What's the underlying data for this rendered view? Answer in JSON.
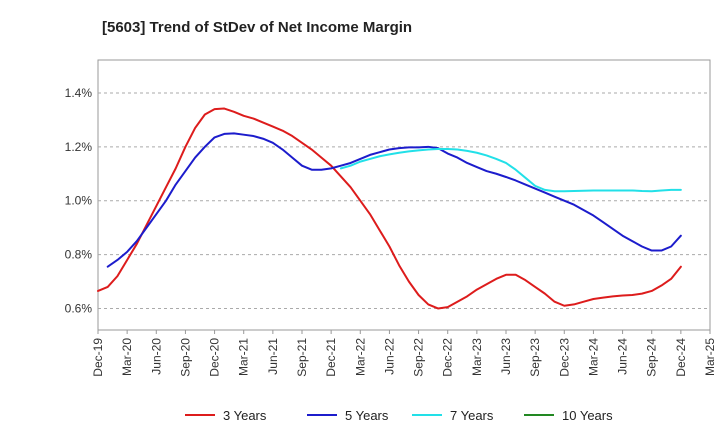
{
  "chart_data": {
    "type": "line",
    "title": "[5603]  Trend of StDev of Net Income Margin",
    "xlabel": "",
    "ylabel": "",
    "x_ticks": [
      "Dec-19",
      "Mar-20",
      "Jun-20",
      "Sep-20",
      "Dec-20",
      "Mar-21",
      "Jun-21",
      "Sep-21",
      "Dec-21",
      "Mar-22",
      "Jun-22",
      "Sep-22",
      "Dec-22",
      "Mar-23",
      "Jun-23",
      "Sep-23",
      "Dec-23",
      "Mar-24",
      "Jun-24",
      "Sep-24",
      "Dec-24",
      "Mar-25"
    ],
    "y_ticks": [
      "0.6%",
      "0.8%",
      "1.0%",
      "1.2%",
      "1.4%"
    ],
    "y_tick_values": [
      0.6,
      0.8,
      1.0,
      1.2,
      1.4
    ],
    "ylim": [
      0.52,
      1.5
    ],
    "grid": "horizontal dashed",
    "legend_position": "bottom",
    "series": [
      {
        "name": "3 Years",
        "color": "#dd1c1c",
        "points": [
          [
            "Dec-19",
            0.665
          ],
          [
            "Jan-20",
            0.68
          ],
          [
            "Feb-20",
            0.72
          ],
          [
            "Mar-20",
            0.78
          ],
          [
            "Apr-20",
            0.84
          ],
          [
            "May-20",
            0.91
          ],
          [
            "Jun-20",
            0.98
          ],
          [
            "Jul-20",
            1.05
          ],
          [
            "Aug-20",
            1.12
          ],
          [
            "Sep-20",
            1.2
          ],
          [
            "Oct-20",
            1.27
          ],
          [
            "Nov-20",
            1.32
          ],
          [
            "Dec-20",
            1.34
          ],
          [
            "Jan-21",
            1.342
          ],
          [
            "Feb-21",
            1.33
          ],
          [
            "Mar-21",
            1.315
          ],
          [
            "Apr-21",
            1.305
          ],
          [
            "May-21",
            1.29
          ],
          [
            "Jun-21",
            1.275
          ],
          [
            "Jul-21",
            1.26
          ],
          [
            "Aug-21",
            1.24
          ],
          [
            "Sep-21",
            1.215
          ],
          [
            "Oct-21",
            1.19
          ],
          [
            "Nov-21",
            1.16
          ],
          [
            "Dec-21",
            1.13
          ],
          [
            "Jan-22",
            1.09
          ],
          [
            "Feb-22",
            1.05
          ],
          [
            "Mar-22",
            1.0
          ],
          [
            "Apr-22",
            0.95
          ],
          [
            "May-22",
            0.89
          ],
          [
            "Jun-22",
            0.83
          ],
          [
            "Jul-22",
            0.76
          ],
          [
            "Aug-22",
            0.7
          ],
          [
            "Sep-22",
            0.65
          ],
          [
            "Oct-22",
            0.615
          ],
          [
            "Nov-22",
            0.6
          ],
          [
            "Dec-22",
            0.605
          ],
          [
            "Jan-23",
            0.625
          ],
          [
            "Feb-23",
            0.645
          ],
          [
            "Mar-23",
            0.67
          ],
          [
            "Apr-23",
            0.69
          ],
          [
            "May-23",
            0.71
          ],
          [
            "Jun-23",
            0.725
          ],
          [
            "Jul-23",
            0.725
          ],
          [
            "Aug-23",
            0.705
          ],
          [
            "Sep-23",
            0.68
          ],
          [
            "Oct-23",
            0.655
          ],
          [
            "Nov-23",
            0.625
          ],
          [
            "Dec-23",
            0.61
          ],
          [
            "Jan-24",
            0.615
          ],
          [
            "Feb-24",
            0.625
          ],
          [
            "Mar-24",
            0.635
          ],
          [
            "Apr-24",
            0.64
          ],
          [
            "May-24",
            0.645
          ],
          [
            "Jun-24",
            0.648
          ],
          [
            "Jul-24",
            0.65
          ],
          [
            "Aug-24",
            0.655
          ],
          [
            "Sep-24",
            0.665
          ],
          [
            "Oct-24",
            0.685
          ],
          [
            "Nov-24",
            0.71
          ],
          [
            "Dec-24",
            0.755
          ]
        ]
      },
      {
        "name": "5 Years",
        "color": "#1c1ccc",
        "points": [
          [
            "Jan-20",
            0.755
          ],
          [
            "Feb-20",
            0.78
          ],
          [
            "Mar-20",
            0.81
          ],
          [
            "Apr-20",
            0.85
          ],
          [
            "May-20",
            0.9
          ],
          [
            "Jun-20",
            0.95
          ],
          [
            "Jul-20",
            1.0
          ],
          [
            "Aug-20",
            1.06
          ],
          [
            "Sep-20",
            1.11
          ],
          [
            "Oct-20",
            1.16
          ],
          [
            "Nov-20",
            1.2
          ],
          [
            "Dec-20",
            1.235
          ],
          [
            "Jan-21",
            1.248
          ],
          [
            "Feb-21",
            1.25
          ],
          [
            "Mar-21",
            1.245
          ],
          [
            "Apr-21",
            1.24
          ],
          [
            "May-21",
            1.23
          ],
          [
            "Jun-21",
            1.215
          ],
          [
            "Jul-21",
            1.19
          ],
          [
            "Aug-21",
            1.16
          ],
          [
            "Sep-21",
            1.13
          ],
          [
            "Oct-21",
            1.115
          ],
          [
            "Nov-21",
            1.115
          ],
          [
            "Dec-21",
            1.12
          ],
          [
            "Jan-22",
            1.13
          ],
          [
            "Feb-22",
            1.14
          ],
          [
            "Mar-22",
            1.155
          ],
          [
            "Apr-22",
            1.17
          ],
          [
            "May-22",
            1.18
          ],
          [
            "Jun-22",
            1.19
          ],
          [
            "Jul-22",
            1.195
          ],
          [
            "Aug-22",
            1.198
          ],
          [
            "Sep-22",
            1.198
          ],
          [
            "Oct-22",
            1.2
          ],
          [
            "Nov-22",
            1.195
          ],
          [
            "Dec-22",
            1.175
          ],
          [
            "Jan-23",
            1.16
          ],
          [
            "Feb-23",
            1.14
          ],
          [
            "Mar-23",
            1.125
          ],
          [
            "Apr-23",
            1.11
          ],
          [
            "May-23",
            1.1
          ],
          [
            "Jun-23",
            1.088
          ],
          [
            "Jul-23",
            1.075
          ],
          [
            "Aug-23",
            1.06
          ],
          [
            "Sep-23",
            1.045
          ],
          [
            "Oct-23",
            1.03
          ],
          [
            "Nov-23",
            1.015
          ],
          [
            "Dec-23",
            1.0
          ],
          [
            "Jan-24",
            0.985
          ],
          [
            "Feb-24",
            0.965
          ],
          [
            "Mar-24",
            0.945
          ],
          [
            "Apr-24",
            0.92
          ],
          [
            "May-24",
            0.895
          ],
          [
            "Jun-24",
            0.87
          ],
          [
            "Jul-24",
            0.85
          ],
          [
            "Aug-24",
            0.83
          ],
          [
            "Sep-24",
            0.815
          ],
          [
            "Oct-24",
            0.815
          ],
          [
            "Nov-24",
            0.83
          ],
          [
            "Dec-24",
            0.87
          ]
        ]
      },
      {
        "name": "7 Years",
        "color": "#22e0e8",
        "points": [
          [
            "Jan-22",
            1.12
          ],
          [
            "Feb-22",
            1.13
          ],
          [
            "Mar-22",
            1.145
          ],
          [
            "Apr-22",
            1.155
          ],
          [
            "May-22",
            1.165
          ],
          [
            "Jun-22",
            1.172
          ],
          [
            "Jul-22",
            1.178
          ],
          [
            "Aug-22",
            1.183
          ],
          [
            "Sep-22",
            1.187
          ],
          [
            "Oct-22",
            1.19
          ],
          [
            "Nov-22",
            1.192
          ],
          [
            "Dec-22",
            1.192
          ],
          [
            "Jan-23",
            1.19
          ],
          [
            "Feb-23",
            1.185
          ],
          [
            "Mar-23",
            1.178
          ],
          [
            "Apr-23",
            1.168
          ],
          [
            "May-23",
            1.155
          ],
          [
            "Jun-23",
            1.14
          ],
          [
            "Jul-23",
            1.115
          ],
          [
            "Aug-23",
            1.085
          ],
          [
            "Sep-23",
            1.055
          ],
          [
            "Oct-23",
            1.04
          ],
          [
            "Nov-23",
            1.035
          ],
          [
            "Dec-23",
            1.035
          ],
          [
            "Jan-24",
            1.036
          ],
          [
            "Feb-24",
            1.037
          ],
          [
            "Mar-24",
            1.038
          ],
          [
            "Apr-24",
            1.038
          ],
          [
            "May-24",
            1.038
          ],
          [
            "Jun-24",
            1.038
          ],
          [
            "Jul-24",
            1.038
          ],
          [
            "Aug-24",
            1.036
          ],
          [
            "Sep-24",
            1.035
          ],
          [
            "Oct-24",
            1.038
          ],
          [
            "Nov-24",
            1.04
          ],
          [
            "Dec-24",
            1.04
          ]
        ]
      },
      {
        "name": "10 Years",
        "color": "#228822",
        "points": []
      }
    ]
  }
}
